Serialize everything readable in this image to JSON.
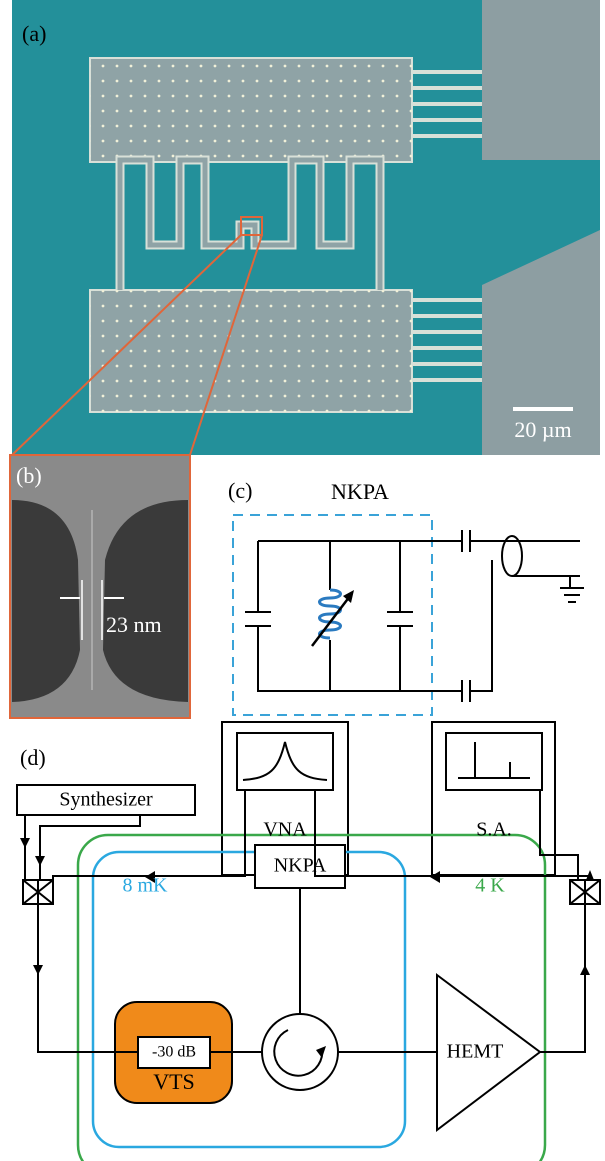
{
  "panels": {
    "a": {
      "label": "(a)",
      "scale_bar": "20 µm"
    },
    "b": {
      "label": "(b)",
      "width": "23 nm"
    },
    "c": {
      "label": "(c)",
      "box_label": "NKPA"
    },
    "d": {
      "label": "(d)",
      "synthesizer": "Synthesizer",
      "vna": "VNA",
      "spectrum_analyzer": "S.A.",
      "stage_mk": "8 mK",
      "stage_4k": "4 K",
      "amplifier": "NKPA",
      "attenuation": "-30 dB",
      "vts": "VTS",
      "hemt": "HEMT"
    }
  }
}
